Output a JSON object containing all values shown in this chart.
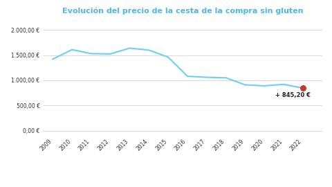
{
  "title": "Evolución del precio de la cesta de la compra sin gluten",
  "title_color": "#4db8e8",
  "years": [
    2009,
    2010,
    2011,
    2012,
    2013,
    2014,
    2015,
    2016,
    2017,
    2018,
    2019,
    2020,
    2021,
    2022
  ],
  "values": [
    1420,
    1610,
    1530,
    1525,
    1640,
    1600,
    1460,
    1080,
    1060,
    1050,
    910,
    890,
    920,
    845.2
  ],
  "line_color": "#6dcff6",
  "line_width": 1.5,
  "last_point_color": "#c0392b",
  "last_point_size": 30,
  "annotation_text": "+ 845,20 €",
  "annotation_color": "#222222",
  "annotation_fontsize": 6.0,
  "yticks": [
    0,
    500,
    1000,
    1500,
    2000
  ],
  "ylim": [
    -80,
    2150
  ],
  "xlim": [
    2008.5,
    2023.0
  ],
  "background_color": "#ffffff",
  "grid_color": "#cccccc",
  "title_fontsize": 8.0,
  "tick_fontsize": 5.5
}
